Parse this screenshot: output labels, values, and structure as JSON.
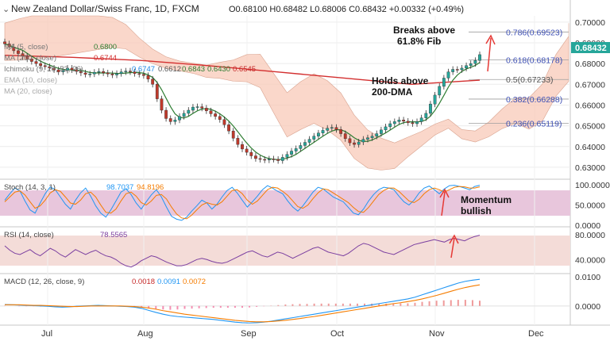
{
  "header": {
    "symbol": "New Zealand Dollar/Swiss Franc, 1D, FXCM",
    "ohlc": "O0.68100 H0.68482 L0.68006 C0.68432 +0.00332 (+0.49%)"
  },
  "legend": {
    "sma200": "MA (200, close)",
    "sma200_value": "0.6744",
    "sma5": "MA (5, close)",
    "sma5_value": "0.6800",
    "ichimoku": "Ichimoku (9, 26, 52, 26)",
    "ichimoku_values": [
      "0.6747",
      "0.6612",
      "0.6843",
      "0.6430",
      "0.6545"
    ],
    "ema": "EMA (10, close)",
    "ma20": "MA (20, close)"
  },
  "annotations": {
    "breaks_line1": "Breaks above",
    "breaks_line2": "61.8% Fib",
    "holds_line1": "Holds above",
    "holds_line2": "200-DMA",
    "momentum_line1": "Momentum",
    "momentum_line2": "bullish"
  },
  "fib_levels": [
    {
      "label": "0.786(0.69523)",
      "value": 0.69523
    },
    {
      "label": "0.618(0.68178)",
      "value": 0.68178
    },
    {
      "label": "0.5(0.67233)",
      "value": 0.67233
    },
    {
      "label": "0.382(0.66288)",
      "value": 0.66288
    },
    {
      "label": "0.236(0.65119)",
      "value": 0.65119
    }
  ],
  "price_tag": "0.68432",
  "colors": {
    "up": "#26a69a",
    "down": "#c0392b",
    "ma200": "#d32f2f",
    "ma_green": "#2e7d32",
    "cloud_red": "#f8c9b8",
    "cloud_green": "#cfe8b6",
    "fib": "#3f51b5",
    "stoch_k": "#2196f3",
    "stoch_d": "#f57c00",
    "rsi": "#7b3fa0",
    "band": "#e8c6dc",
    "arrow": "#e53935"
  },
  "chart_data": [
    {
      "type": "candlestick",
      "panel": "price",
      "ylim": [
        0.625,
        0.703
      ],
      "y_ticks": [
        "0.70000",
        "0.69000",
        "0.68000",
        "0.67000",
        "0.66000",
        "0.65000",
        "0.64000",
        "0.63000"
      ],
      "x_ticks": [
        "Jul",
        "Aug",
        "Sep",
        "Oct",
        "Nov",
        "Dec"
      ],
      "close_series": [
        0.6895,
        0.688,
        0.6862,
        0.6848,
        0.6835,
        0.6822,
        0.681,
        0.68,
        0.679,
        0.6785,
        0.6778,
        0.677,
        0.676,
        0.6768,
        0.6778,
        0.677,
        0.6762,
        0.6755,
        0.6748,
        0.675,
        0.6758,
        0.6762,
        0.6755,
        0.675,
        0.6745,
        0.6752,
        0.676,
        0.6764,
        0.676,
        0.6752,
        0.6748,
        0.6742,
        0.6725,
        0.67,
        0.663,
        0.6575,
        0.6535,
        0.652,
        0.6528,
        0.6545,
        0.656,
        0.6575,
        0.659,
        0.6592,
        0.6585,
        0.6572,
        0.6558,
        0.6545,
        0.653,
        0.6505,
        0.6475,
        0.644,
        0.641,
        0.6388,
        0.6372,
        0.6355,
        0.6342,
        0.6338,
        0.6335,
        0.634,
        0.6338,
        0.6332,
        0.6348,
        0.6362,
        0.6378,
        0.639,
        0.6405,
        0.642,
        0.6435,
        0.645,
        0.6465,
        0.6478,
        0.6488,
        0.6492,
        0.6482,
        0.6462,
        0.6438,
        0.6418,
        0.641,
        0.6422,
        0.6435,
        0.6442,
        0.645,
        0.6462,
        0.648,
        0.6495,
        0.651,
        0.652,
        0.6528,
        0.6522,
        0.6515,
        0.651,
        0.652,
        0.6538,
        0.656,
        0.6605,
        0.6648,
        0.669,
        0.673,
        0.676,
        0.6772,
        0.677,
        0.6778,
        0.679,
        0.68,
        0.6815,
        0.6843
      ],
      "sma200": [
        0.684,
        0.683,
        0.6815,
        0.679,
        0.676,
        0.673,
        0.67,
        0.672
      ],
      "fib": [
        0.69523,
        0.68178,
        0.67233,
        0.66288,
        0.65119
      ],
      "last": 0.68432
    },
    {
      "type": "line",
      "panel": "stoch",
      "title": "Stoch (14, 3, 1)",
      "values_label": [
        "98.7037",
        "94.8196"
      ],
      "ylim": [
        0,
        110
      ],
      "y_ticks": [
        "100.0000",
        "50.0000",
        "0.0000"
      ],
      "series": [
        {
          "name": "%K",
          "values": [
            62,
            78,
            92,
            85,
            60,
            38,
            30,
            55,
            78,
            95,
            88,
            70,
            52,
            40,
            62,
            80,
            92,
            72,
            48,
            30,
            20,
            38,
            60,
            82,
            90,
            76,
            55,
            40,
            58,
            75,
            88,
            70,
            45,
            22,
            15,
            12,
            20,
            35,
            48,
            62,
            55,
            40,
            52,
            70,
            86,
            94,
            80,
            62,
            45,
            58,
            72,
            88,
            98,
            92,
            84,
            78,
            60,
            45,
            35,
            48,
            65,
            82,
            94,
            90,
            80,
            70,
            64,
            58,
            44,
            30,
            26,
            40,
            60,
            76,
            88,
            94,
            92,
            88,
            72,
            58,
            50,
            62,
            80,
            92,
            97,
            88,
            78,
            90,
            98,
            99,
            96,
            92,
            88,
            96,
            99
          ]
        },
        {
          "name": "%D",
          "values": [
            58,
            70,
            82,
            85,
            75,
            58,
            42,
            48,
            62,
            80,
            88,
            84,
            70,
            55,
            52,
            62,
            78,
            82,
            70,
            50,
            32,
            30,
            40,
            60,
            78,
            82,
            72,
            56,
            50,
            60,
            74,
            76,
            65,
            45,
            28,
            18,
            16,
            25,
            38,
            50,
            56,
            52,
            50,
            58,
            72,
            86,
            88,
            78,
            62,
            52,
            60,
            74,
            88,
            94,
            92,
            84,
            74,
            60,
            46,
            42,
            50,
            66,
            80,
            90,
            88,
            80,
            72,
            64,
            56,
            44,
            34,
            32,
            44,
            60,
            76,
            86,
            92,
            92,
            84,
            72,
            60,
            56,
            64,
            78,
            88,
            92,
            88,
            82,
            88,
            94,
            96,
            95,
            92,
            92,
            95
          ]
        }
      ]
    },
    {
      "type": "line",
      "panel": "rsi",
      "title": "RSI (14, close)",
      "values_label": [
        "78.5565"
      ],
      "ylim": [
        20,
        90
      ],
      "y_ticks": [
        "80.0000",
        "40.0000"
      ],
      "series": [
        {
          "name": "RSI",
          "values": [
            62,
            55,
            50,
            48,
            52,
            56,
            50,
            46,
            52,
            58,
            54,
            48,
            44,
            50,
            56,
            52,
            48,
            52,
            55,
            50,
            46,
            44,
            40,
            34,
            30,
            28,
            32,
            38,
            42,
            46,
            44,
            40,
            36,
            33,
            30,
            30,
            32,
            36,
            40,
            42,
            40,
            37,
            35,
            34,
            36,
            40,
            44,
            48,
            52,
            54,
            50,
            46,
            44,
            48,
            52,
            50,
            46,
            42,
            46,
            50,
            54,
            58,
            60,
            56,
            52,
            50,
            48,
            46,
            50,
            56,
            62,
            66,
            64,
            60,
            56,
            52,
            50,
            48,
            52,
            56,
            60,
            64,
            66,
            68,
            70,
            72,
            70,
            68,
            72,
            74,
            72,
            70,
            74,
            77,
            79
          ]
        }
      ]
    },
    {
      "type": "line",
      "panel": "macd",
      "title": "MACD (12, 26, close, 9)",
      "values_label": [
        "0.0018",
        "0.0091",
        "0.0072"
      ],
      "ylim": [
        -0.006,
        0.0105
      ],
      "y_ticks": [
        "0.0100",
        "0.0000"
      ],
      "series": [
        {
          "name": "MACD",
          "values": [
            0.0005,
            0.0004,
            0.0003,
            0.0002,
            0.0001,
            0.0,
            -0.0001,
            -0.0003,
            -0.0004,
            -0.0003,
            -0.0001,
            0.0,
            0.0001,
            0.0002,
            0.0001,
            0.0,
            -0.0001,
            -0.0002,
            -0.0004,
            -0.0008,
            -0.0015,
            -0.0022,
            -0.0028,
            -0.0033,
            -0.0036,
            -0.0038,
            -0.004,
            -0.0042,
            -0.0044,
            -0.0046,
            -0.0049,
            -0.0052,
            -0.0055,
            -0.0057,
            -0.0058,
            -0.0057,
            -0.0055,
            -0.0052,
            -0.0048,
            -0.0044,
            -0.004,
            -0.0036,
            -0.0032,
            -0.0028,
            -0.0024,
            -0.002,
            -0.0016,
            -0.0012,
            -0.0008,
            -0.0004,
            0.0,
            0.0004,
            0.0008,
            0.0012,
            0.0016,
            0.002,
            0.0024,
            0.003,
            0.0038,
            0.0046,
            0.0054,
            0.0062,
            0.007,
            0.0078,
            0.0084,
            0.0088,
            0.0091
          ]
        },
        {
          "name": "Signal",
          "values": [
            0.0004,
            0.0004,
            0.0004,
            0.0003,
            0.0002,
            0.0002,
            0.0001,
            0.0,
            -0.0001,
            -0.0002,
            -0.0002,
            -0.0001,
            0.0,
            0.0,
            0.0,
            0.0,
            0.0,
            -0.0001,
            -0.0002,
            -0.0004,
            -0.0007,
            -0.0011,
            -0.0016,
            -0.002,
            -0.0024,
            -0.0028,
            -0.0031,
            -0.0034,
            -0.0037,
            -0.004,
            -0.0043,
            -0.0046,
            -0.0049,
            -0.0051,
            -0.0053,
            -0.0054,
            -0.0054,
            -0.0053,
            -0.0051,
            -0.0049,
            -0.0046,
            -0.0043,
            -0.0039,
            -0.0036,
            -0.0032,
            -0.0028,
            -0.0024,
            -0.002,
            -0.0016,
            -0.0012,
            -0.0008,
            -0.0004,
            0.0,
            0.0004,
            0.0008,
            0.0011,
            0.0015,
            0.0019,
            0.0024,
            0.003,
            0.0036,
            0.0043,
            0.005,
            0.0057,
            0.0063,
            0.0068,
            0.0072
          ]
        },
        {
          "name": "Histogram",
          "values": [
            0.0001,
            0.0,
            -0.0001,
            -0.0001,
            -0.0001,
            -0.0002,
            -0.0002,
            -0.0003,
            -0.0003,
            -0.0001,
            0.0001,
            0.0001,
            0.0001,
            0.0002,
            0.0001,
            0.0,
            -0.0001,
            -0.0001,
            -0.0002,
            -0.0004,
            -0.0008,
            -0.0011,
            -0.0012,
            -0.0013,
            -0.0012,
            -0.001,
            -0.0009,
            -0.0008,
            -0.0007,
            -0.0006,
            -0.0006,
            -0.0006,
            -0.0006,
            -0.0006,
            -0.0005,
            -0.0003,
            -0.0001,
            0.0001,
            0.0003,
            0.0005,
            0.0006,
            0.0007,
            0.0007,
            0.0008,
            0.0008,
            0.0008,
            0.0008,
            0.0008,
            0.0008,
            0.0008,
            0.0008,
            0.0008,
            0.0008,
            0.0008,
            0.0008,
            0.0009,
            0.0009,
            0.0011,
            0.0014,
            0.0016,
            0.0018,
            0.0019,
            0.002,
            0.0021,
            0.0021,
            0.002,
            0.0018
          ]
        }
      ]
    }
  ]
}
